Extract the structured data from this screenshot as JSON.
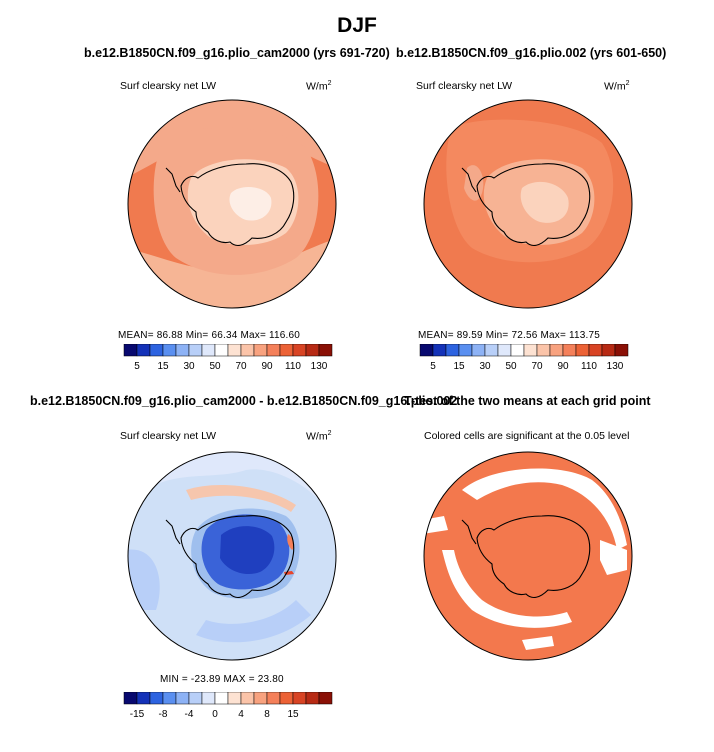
{
  "figure": {
    "title": "DJF",
    "colors": {
      "antarctic_low": "#fbd3bd",
      "antarctic_mid": "#f4a98a",
      "ocean_high": "#f07a4f",
      "ice_white": "#fdeee6",
      "diff_base": "#cfe0f7",
      "diff_mid": "#9fbfee",
      "diff_dark": "#3a63d8",
      "diff_darker": "#1f3fbf",
      "diff_warm": "#f6c6ad",
      "sig_color": "#f3784d"
    }
  },
  "panels": [
    {
      "id": "case1",
      "title": "b.e12.B1850CN.f09_g16.plio_cam2000 (yrs 691-720)",
      "subtitle": "Surf clearsky net LW",
      "units": "W/m",
      "units_sup": "2",
      "stats_text": "MEAN=  86.88  Min=  66.34  Max= 116.60"
    },
    {
      "id": "case2",
      "title": "b.e12.B1850CN.f09_g16.plio.002 (yrs 601-650)",
      "subtitle": "Surf clearsky net LW",
      "units": "W/m",
      "units_sup": "2",
      "stats_text": "MEAN=  89.59  Min=  72.56  Max= 113.75"
    },
    {
      "id": "diff",
      "title": "b.e12.B1850CN.f09_g16.plio_cam2000 - b.e12.B1850CN.f09_g16.plio.002",
      "subtitle": "Surf clearsky net LW",
      "units": "W/m",
      "units_sup": "2",
      "stats_text": "MIN = -23.89  MAX =  23.80"
    },
    {
      "id": "ttest",
      "title": "T-test of the two means at each grid point",
      "subtitle": "Colored cells are significant at the 0.05 level"
    }
  ],
  "chart_data": [
    {
      "type": "heatmap",
      "title": "b.e12.B1850CN.f09_g16.plio_cam2000 (yrs 691-720)",
      "field": "Surf clearsky net LW",
      "units": "W/m2",
      "projection": "south polar stereographic",
      "stats": {
        "mean": 86.88,
        "min": 66.34,
        "max": 116.6
      },
      "colorbar": {
        "tick_labels": [
          "5",
          "15",
          "30",
          "50",
          "70",
          "90",
          "110",
          "130"
        ],
        "colors": [
          "#08096f",
          "#1432b8",
          "#2d63e0",
          "#5a8ff0",
          "#8db2f5",
          "#b8cff8",
          "#dfe8fb",
          "#ffffff",
          "#fde2d2",
          "#fbc4a9",
          "#f8a27f",
          "#f4805a",
          "#ec6236",
          "#d84424",
          "#b72a14",
          "#8a1006"
        ]
      }
    },
    {
      "type": "heatmap",
      "title": "b.e12.B1850CN.f09_g16.plio.002 (yrs 601-650)",
      "field": "Surf clearsky net LW",
      "units": "W/m2",
      "projection": "south polar stereographic",
      "stats": {
        "mean": 89.59,
        "min": 72.56,
        "max": 113.75
      },
      "colorbar": {
        "tick_labels": [
          "5",
          "15",
          "30",
          "50",
          "70",
          "90",
          "110",
          "130"
        ],
        "colors": [
          "#08096f",
          "#1432b8",
          "#2d63e0",
          "#5a8ff0",
          "#8db2f5",
          "#b8cff8",
          "#dfe8fb",
          "#ffffff",
          "#fde2d2",
          "#fbc4a9",
          "#f8a27f",
          "#f4805a",
          "#ec6236",
          "#d84424",
          "#b72a14",
          "#8a1006"
        ]
      }
    },
    {
      "type": "heatmap",
      "title": "b.e12.B1850CN.f09_g16.plio_cam2000 - b.e12.B1850CN.f09_g16.plio.002",
      "field": "Surf clearsky net LW",
      "units": "W/m2",
      "projection": "south polar stereographic",
      "stats": {
        "min": -23.89,
        "max": 23.8
      },
      "colorbar": {
        "tick_labels": [
          "-15",
          "-8",
          "-4",
          "0",
          "4",
          "8",
          "15"
        ],
        "colors": [
          "#08096f",
          "#1432b8",
          "#2d63e0",
          "#5a8ff0",
          "#8db2f5",
          "#b8cff8",
          "#dfe8fb",
          "#ffffff",
          "#fde2d2",
          "#fbc4a9",
          "#f8a27f",
          "#f4805a",
          "#ec6236",
          "#d84424",
          "#b72a14",
          "#8a1006"
        ]
      }
    },
    {
      "type": "heatmap",
      "title": "T-test of the two means at each grid point",
      "field": "Colored cells are significant at the 0.05 level",
      "projection": "south polar stereographic"
    }
  ]
}
